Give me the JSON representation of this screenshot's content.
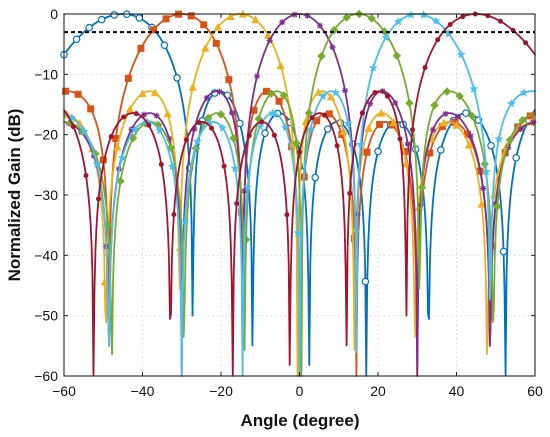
{
  "chart_data": {
    "type": "line",
    "title": "",
    "xlabel": "Angle (degree)",
    "ylabel": "Normalized Gain (dB)",
    "xlim": [
      -60,
      60
    ],
    "ylim": [
      -60,
      0
    ],
    "xticks": [
      -60,
      -40,
      -20,
      0,
      20,
      40,
      60
    ],
    "yticks": [
      0,
      -10,
      -20,
      -30,
      -40,
      -50,
      -60
    ],
    "xtick_labels": [
      "−60",
      "−40",
      "−20",
      "0",
      "20",
      "40",
      "60"
    ],
    "ytick_labels": [
      "0",
      "−10",
      "−20",
      "−30",
      "−40",
      "−50",
      "−60"
    ],
    "grid": true,
    "legend": "none",
    "reference_line": {
      "y": -3,
      "style": "dashed",
      "color": "#000000"
    },
    "series": [
      {
        "steer_deg": -45,
        "color": "#0072BD",
        "marker": "circle"
      },
      {
        "steer_deg": -30,
        "color": "#D95319",
        "marker": "square"
      },
      {
        "steer_deg": -15,
        "color": "#EDB120",
        "marker": "triangle"
      },
      {
        "steer_deg": 0,
        "color": "#7E2F8E",
        "marker": "asterisk"
      },
      {
        "steer_deg": 15,
        "color": "#77AC30",
        "marker": "diamond"
      },
      {
        "steer_deg": 30,
        "color": "#4DBEEE",
        "marker": "star"
      },
      {
        "steer_deg": 45,
        "color": "#A2142F",
        "marker": "dot"
      }
    ]
  }
}
